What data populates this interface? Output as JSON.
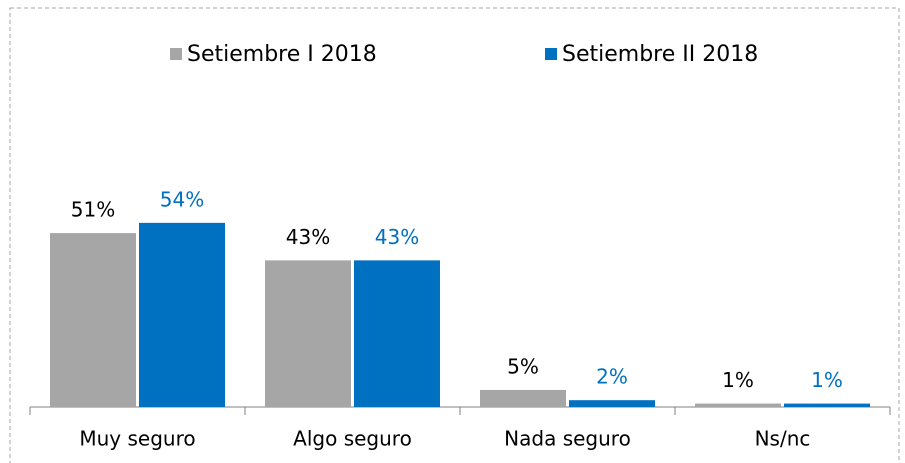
{
  "chart_data": {
    "type": "bar",
    "categories": [
      "Muy seguro",
      "Algo seguro",
      "Nada seguro",
      "Ns/nc"
    ],
    "series": [
      {
        "name": "Setiembre I 2018",
        "color": "#a6a6a6",
        "label_color": "#000000",
        "values": [
          51,
          43,
          5,
          1
        ],
        "value_labels": [
          "51%",
          "43%",
          "5%",
          "1%"
        ]
      },
      {
        "name": "Setiembre II 2018",
        "color": "#0070c0",
        "label_color": "#0070c0",
        "values": [
          54,
          43,
          2,
          1
        ],
        "value_labels": [
          "54%",
          "43%",
          "2%",
          "1%"
        ]
      }
    ],
    "legend": "top"
  }
}
